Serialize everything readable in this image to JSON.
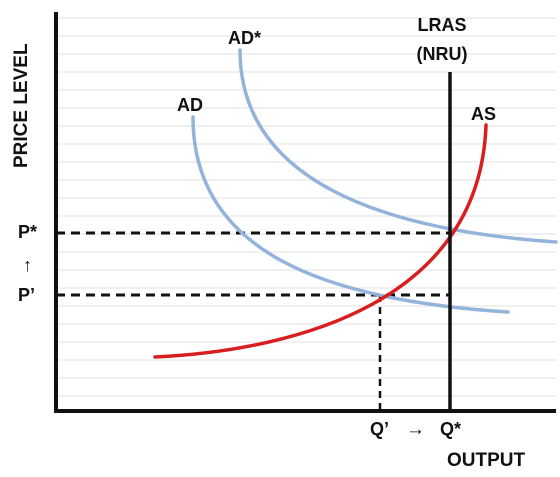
{
  "axes": {
    "y_label": "PRICE LEVEL",
    "x_label": "OUTPUT"
  },
  "curves": {
    "ad": "AD",
    "ad_star": "AD*",
    "as": "AS",
    "lras_line1": "LRAS",
    "lras_line2": "(NRU)"
  },
  "markers": {
    "p_star": "P*",
    "p_prime": "P’",
    "up_arrow": "↑",
    "q_prime": "Q’",
    "right_arrow": "→",
    "q_star": "Q*"
  },
  "colors": {
    "ad": "#94b3db",
    "as": "#d81e1e",
    "axis": "#111111",
    "grid": "#e2e2e2"
  }
}
